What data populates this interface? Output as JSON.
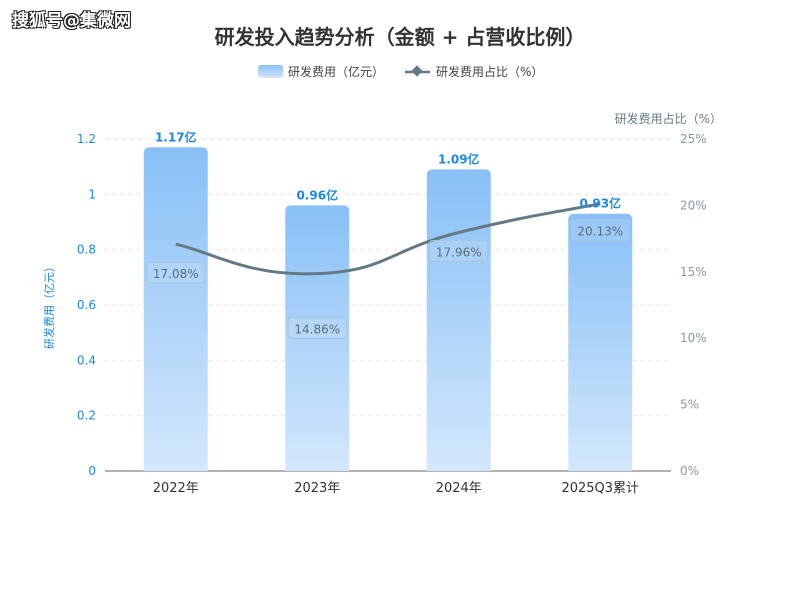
{
  "watermark": "搜狐号@集微网",
  "chart_data": {
    "type": "bar+line",
    "title": "研发投入趋势分析（金额 + 占营收比例）",
    "categories": [
      "2022年",
      "2023年",
      "2024年",
      "2025Q3累计"
    ],
    "series": [
      {
        "name": "研发费用（亿元）",
        "type": "bar",
        "axis": "left",
        "values": [
          1.17,
          0.96,
          1.09,
          0.93
        ],
        "labels": [
          "1.17亿",
          "0.96亿",
          "1.09亿",
          "0.93亿"
        ],
        "color": "#8cc3f7"
      },
      {
        "name": "研发费用占比（%）",
        "type": "line",
        "axis": "right",
        "values": [
          17.08,
          14.86,
          17.96,
          20.13
        ],
        "labels": [
          "17.08%",
          "14.86%",
          "17.96%",
          "20.13%"
        ],
        "color": "#637a84"
      }
    ],
    "ylabel": "研发费用（亿元）",
    "y2label": "研发费用占比（%）",
    "ylim": [
      0,
      1.2
    ],
    "yticks": [
      "0",
      "0.2",
      "0.4",
      "0.6",
      "0.8",
      "1",
      "1.2"
    ],
    "y2lim": [
      0,
      25
    ],
    "y2ticks": [
      "0%",
      "5%",
      "10%",
      "15%",
      "20%",
      "25%"
    ],
    "grid": true,
    "legend": "top-center"
  }
}
